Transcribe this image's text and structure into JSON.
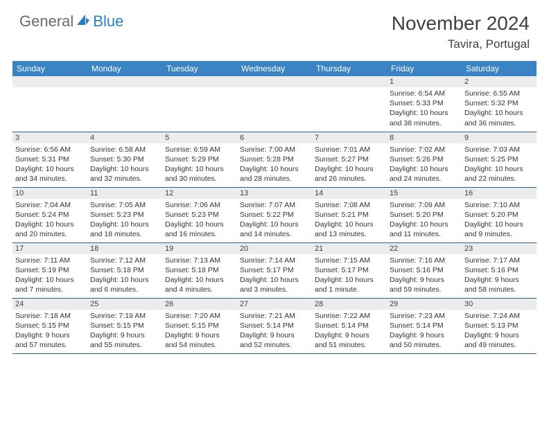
{
  "logo": {
    "general": "General",
    "blue": "Blue"
  },
  "title": "November 2024",
  "location": "Tavira, Portugal",
  "colors": {
    "header_bg": "#3a84c4",
    "header_text": "#ffffff",
    "rule": "#2f5d8a",
    "daybar_bg": "#ececec",
    "text": "#333333",
    "logo_gray": "#6a6a6a",
    "logo_blue": "#2a7fbf"
  },
  "weekdays": [
    "Sunday",
    "Monday",
    "Tuesday",
    "Wednesday",
    "Thursday",
    "Friday",
    "Saturday"
  ],
  "layout": {
    "first_weekday_index": 5,
    "days_in_month": 30,
    "columns": 7,
    "rows": 5
  },
  "days": {
    "1": {
      "num": "1",
      "sunrise": "Sunrise: 6:54 AM",
      "sunset": "Sunset: 5:33 PM",
      "day1": "Daylight: 10 hours",
      "day2": "and 38 minutes."
    },
    "2": {
      "num": "2",
      "sunrise": "Sunrise: 6:55 AM",
      "sunset": "Sunset: 5:32 PM",
      "day1": "Daylight: 10 hours",
      "day2": "and 36 minutes."
    },
    "3": {
      "num": "3",
      "sunrise": "Sunrise: 6:56 AM",
      "sunset": "Sunset: 5:31 PM",
      "day1": "Daylight: 10 hours",
      "day2": "and 34 minutes."
    },
    "4": {
      "num": "4",
      "sunrise": "Sunrise: 6:58 AM",
      "sunset": "Sunset: 5:30 PM",
      "day1": "Daylight: 10 hours",
      "day2": "and 32 minutes."
    },
    "5": {
      "num": "5",
      "sunrise": "Sunrise: 6:59 AM",
      "sunset": "Sunset: 5:29 PM",
      "day1": "Daylight: 10 hours",
      "day2": "and 30 minutes."
    },
    "6": {
      "num": "6",
      "sunrise": "Sunrise: 7:00 AM",
      "sunset": "Sunset: 5:28 PM",
      "day1": "Daylight: 10 hours",
      "day2": "and 28 minutes."
    },
    "7": {
      "num": "7",
      "sunrise": "Sunrise: 7:01 AM",
      "sunset": "Sunset: 5:27 PM",
      "day1": "Daylight: 10 hours",
      "day2": "and 26 minutes."
    },
    "8": {
      "num": "8",
      "sunrise": "Sunrise: 7:02 AM",
      "sunset": "Sunset: 5:26 PM",
      "day1": "Daylight: 10 hours",
      "day2": "and 24 minutes."
    },
    "9": {
      "num": "9",
      "sunrise": "Sunrise: 7:03 AM",
      "sunset": "Sunset: 5:25 PM",
      "day1": "Daylight: 10 hours",
      "day2": "and 22 minutes."
    },
    "10": {
      "num": "10",
      "sunrise": "Sunrise: 7:04 AM",
      "sunset": "Sunset: 5:24 PM",
      "day1": "Daylight: 10 hours",
      "day2": "and 20 minutes."
    },
    "11": {
      "num": "11",
      "sunrise": "Sunrise: 7:05 AM",
      "sunset": "Sunset: 5:23 PM",
      "day1": "Daylight: 10 hours",
      "day2": "and 18 minutes."
    },
    "12": {
      "num": "12",
      "sunrise": "Sunrise: 7:06 AM",
      "sunset": "Sunset: 5:23 PM",
      "day1": "Daylight: 10 hours",
      "day2": "and 16 minutes."
    },
    "13": {
      "num": "13",
      "sunrise": "Sunrise: 7:07 AM",
      "sunset": "Sunset: 5:22 PM",
      "day1": "Daylight: 10 hours",
      "day2": "and 14 minutes."
    },
    "14": {
      "num": "14",
      "sunrise": "Sunrise: 7:08 AM",
      "sunset": "Sunset: 5:21 PM",
      "day1": "Daylight: 10 hours",
      "day2": "and 13 minutes."
    },
    "15": {
      "num": "15",
      "sunrise": "Sunrise: 7:09 AM",
      "sunset": "Sunset: 5:20 PM",
      "day1": "Daylight: 10 hours",
      "day2": "and 11 minutes."
    },
    "16": {
      "num": "16",
      "sunrise": "Sunrise: 7:10 AM",
      "sunset": "Sunset: 5:20 PM",
      "day1": "Daylight: 10 hours",
      "day2": "and 9 minutes."
    },
    "17": {
      "num": "17",
      "sunrise": "Sunrise: 7:11 AM",
      "sunset": "Sunset: 5:19 PM",
      "day1": "Daylight: 10 hours",
      "day2": "and 7 minutes."
    },
    "18": {
      "num": "18",
      "sunrise": "Sunrise: 7:12 AM",
      "sunset": "Sunset: 5:18 PM",
      "day1": "Daylight: 10 hours",
      "day2": "and 6 minutes."
    },
    "19": {
      "num": "19",
      "sunrise": "Sunrise: 7:13 AM",
      "sunset": "Sunset: 5:18 PM",
      "day1": "Daylight: 10 hours",
      "day2": "and 4 minutes."
    },
    "20": {
      "num": "20",
      "sunrise": "Sunrise: 7:14 AM",
      "sunset": "Sunset: 5:17 PM",
      "day1": "Daylight: 10 hours",
      "day2": "and 3 minutes."
    },
    "21": {
      "num": "21",
      "sunrise": "Sunrise: 7:15 AM",
      "sunset": "Sunset: 5:17 PM",
      "day1": "Daylight: 10 hours",
      "day2": "and 1 minute."
    },
    "22": {
      "num": "22",
      "sunrise": "Sunrise: 7:16 AM",
      "sunset": "Sunset: 5:16 PM",
      "day1": "Daylight: 9 hours",
      "day2": "and 59 minutes."
    },
    "23": {
      "num": "23",
      "sunrise": "Sunrise: 7:17 AM",
      "sunset": "Sunset: 5:16 PM",
      "day1": "Daylight: 9 hours",
      "day2": "and 58 minutes."
    },
    "24": {
      "num": "24",
      "sunrise": "Sunrise: 7:18 AM",
      "sunset": "Sunset: 5:15 PM",
      "day1": "Daylight: 9 hours",
      "day2": "and 57 minutes."
    },
    "25": {
      "num": "25",
      "sunrise": "Sunrise: 7:19 AM",
      "sunset": "Sunset: 5:15 PM",
      "day1": "Daylight: 9 hours",
      "day2": "and 55 minutes."
    },
    "26": {
      "num": "26",
      "sunrise": "Sunrise: 7:20 AM",
      "sunset": "Sunset: 5:15 PM",
      "day1": "Daylight: 9 hours",
      "day2": "and 54 minutes."
    },
    "27": {
      "num": "27",
      "sunrise": "Sunrise: 7:21 AM",
      "sunset": "Sunset: 5:14 PM",
      "day1": "Daylight: 9 hours",
      "day2": "and 52 minutes."
    },
    "28": {
      "num": "28",
      "sunrise": "Sunrise: 7:22 AM",
      "sunset": "Sunset: 5:14 PM",
      "day1": "Daylight: 9 hours",
      "day2": "and 51 minutes."
    },
    "29": {
      "num": "29",
      "sunrise": "Sunrise: 7:23 AM",
      "sunset": "Sunset: 5:14 PM",
      "day1": "Daylight: 9 hours",
      "day2": "and 50 minutes."
    },
    "30": {
      "num": "30",
      "sunrise": "Sunrise: 7:24 AM",
      "sunset": "Sunset: 5:13 PM",
      "day1": "Daylight: 9 hours",
      "day2": "and 49 minutes."
    }
  }
}
